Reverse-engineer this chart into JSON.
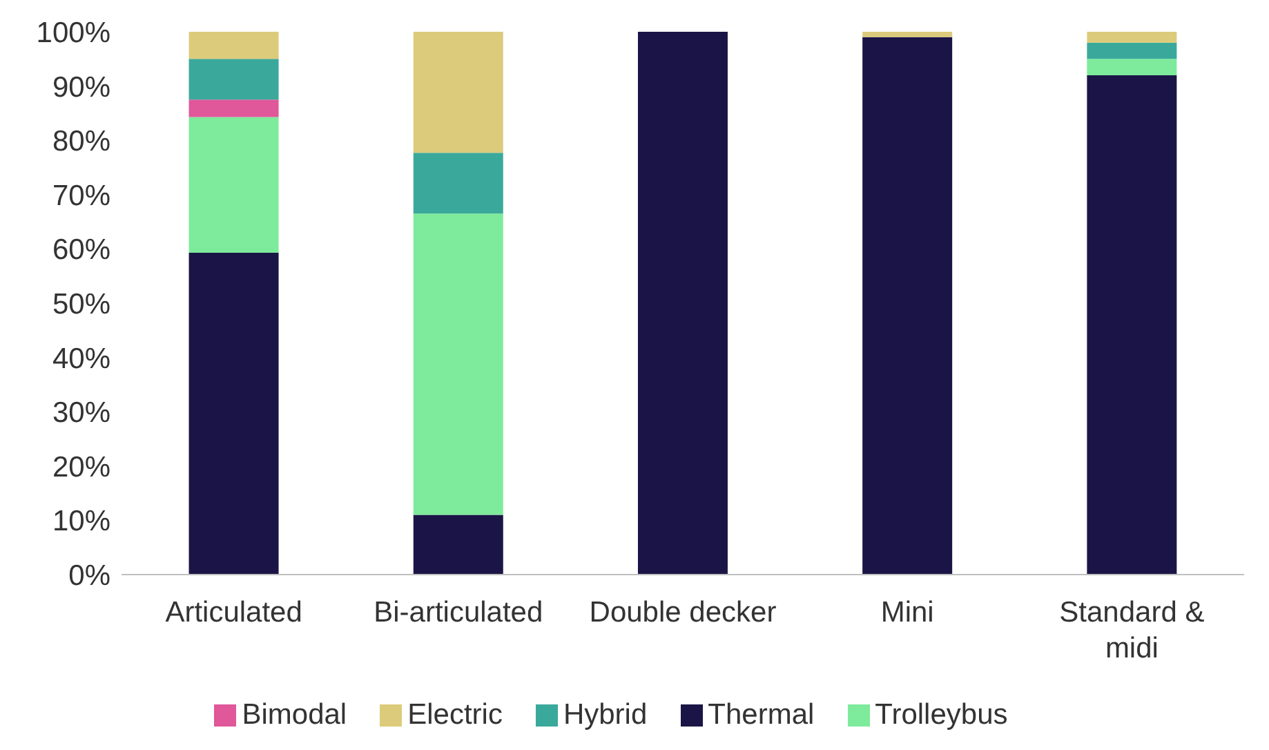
{
  "chart_data": {
    "type": "bar",
    "stacked": true,
    "categories": [
      "Articulated",
      "Bi-articulated",
      "Double decker",
      "Mini",
      "Standard & midi"
    ],
    "series": [
      {
        "name": "Thermal",
        "color": "#1b1547",
        "values": [
          59.3,
          11,
          100,
          99,
          92
        ]
      },
      {
        "name": "Trolleybus",
        "color": "#7deb9b",
        "values": [
          25,
          55.5,
          0,
          0,
          3
        ]
      },
      {
        "name": "Bimodal",
        "color": "#e0579a",
        "values": [
          3.2,
          0,
          0,
          0,
          0
        ]
      },
      {
        "name": "Hybrid",
        "color": "#3aa99b",
        "values": [
          7.5,
          11.2,
          0,
          0,
          3
        ]
      },
      {
        "name": "Electric",
        "color": "#dccb7a",
        "values": [
          5,
          22.3,
          0,
          1,
          2
        ]
      }
    ],
    "ylim": [
      0,
      100
    ],
    "yticks": [
      {
        "value": 0,
        "label": "0%"
      },
      {
        "value": 10,
        "label": "10%"
      },
      {
        "value": 20,
        "label": "20%"
      },
      {
        "value": 30,
        "label": "30%"
      },
      {
        "value": 40,
        "label": "40%"
      },
      {
        "value": 50,
        "label": "50%"
      },
      {
        "value": 60,
        "label": "60%"
      },
      {
        "value": 70,
        "label": "70%"
      },
      {
        "value": 80,
        "label": "80%"
      },
      {
        "value": 90,
        "label": "90%"
      },
      {
        "value": 100,
        "label": "100%"
      }
    ],
    "grid": false,
    "legend": "bottom"
  }
}
